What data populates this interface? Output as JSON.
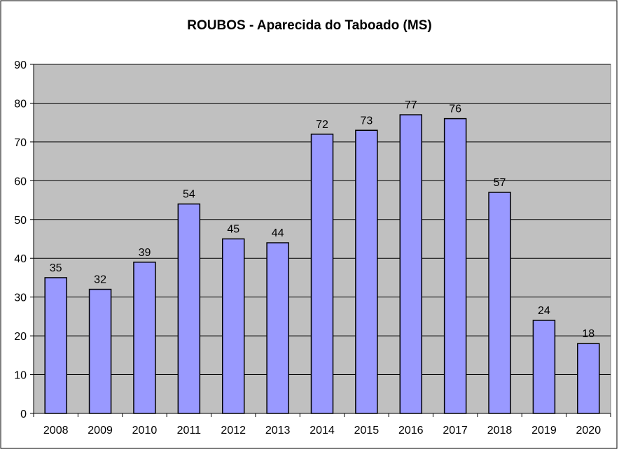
{
  "chart_data": {
    "type": "bar",
    "title": "ROUBOS - Aparecida do Taboado (MS)",
    "xlabel": "",
    "ylabel": "",
    "categories": [
      "2008",
      "2009",
      "2010",
      "2011",
      "2012",
      "2013",
      "2014",
      "2015",
      "2016",
      "2017",
      "2018",
      "2019",
      "2020"
    ],
    "values": [
      35,
      32,
      39,
      54,
      45,
      44,
      72,
      73,
      77,
      76,
      57,
      24,
      18
    ],
    "ylim": [
      0,
      90
    ],
    "yticks": [
      0,
      10,
      20,
      30,
      40,
      50,
      60,
      70,
      80,
      90
    ],
    "grid": true,
    "data_labels": true,
    "legend": "none",
    "colors": {
      "bar_fill": "#9999FF",
      "bar_stroke": "#000000",
      "plot_background": "#C0C0C0",
      "gridline": "#000000",
      "page_background": "#FFFFFF"
    }
  }
}
